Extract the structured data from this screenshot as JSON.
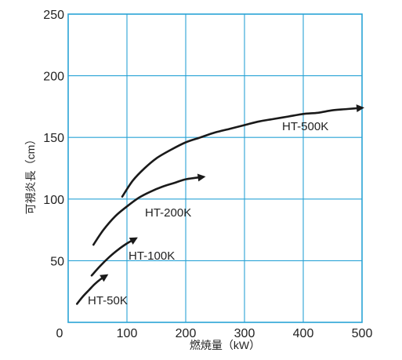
{
  "chart_data": {
    "type": "line",
    "title": "",
    "xlabel": "燃焼量（kW）",
    "ylabel": "可視炎長（cm）",
    "xlim": [
      0,
      500
    ],
    "ylim": [
      0,
      250
    ],
    "x_ticks": [
      0,
      100,
      200,
      300,
      400,
      500
    ],
    "x_tick_labels": [
      "0",
      "100",
      "200",
      "300",
      "400",
      "500"
    ],
    "y_ticks": [
      50,
      100,
      150,
      200,
      250
    ],
    "y_tick_labels": [
      "50",
      "100",
      "150",
      "200",
      "250"
    ],
    "grid": true,
    "legend": "none",
    "colors": {
      "grid": "#29a3d6",
      "curve": "#1a1a1a"
    },
    "series": [
      {
        "name": "HT-50K",
        "x": [
          15,
          25,
          35,
          45,
          55,
          65
        ],
        "y": [
          15,
          21,
          26,
          31,
          35,
          38
        ]
      },
      {
        "name": "HT-100K",
        "x": [
          40,
          55,
          70,
          85,
          100,
          115
        ],
        "y": [
          38,
          46,
          53,
          59,
          64,
          68
        ]
      },
      {
        "name": "HT-200K",
        "x": [
          43,
          60,
          80,
          100,
          120,
          140,
          160,
          180,
          200,
          230
        ],
        "y": [
          63,
          75,
          86,
          94,
          101,
          106,
          110,
          113,
          116,
          118
        ]
      },
      {
        "name": "HT-500K",
        "x": [
          92,
          110,
          130,
          150,
          175,
          200,
          225,
          250,
          275,
          300,
          325,
          350,
          375,
          400,
          425,
          450,
          475,
          500
        ],
        "y": [
          102,
          115,
          125,
          133,
          140,
          146,
          150,
          154,
          157,
          160,
          163,
          165,
          167,
          169,
          170,
          172,
          173,
          174
        ]
      }
    ]
  }
}
